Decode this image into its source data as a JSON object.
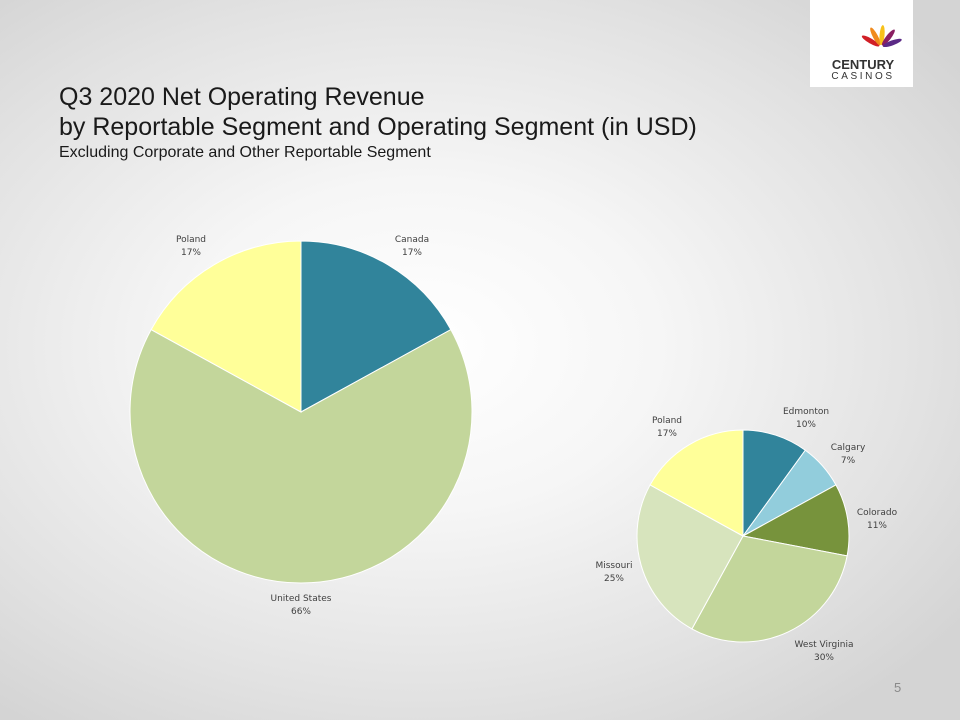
{
  "slide": {
    "title_line1": "Q3 2020 Net Operating Revenue",
    "title_line2": "by Reportable Segment and Operating Segment (in USD)",
    "subtitle": "Excluding Corporate and Other Reportable Segment",
    "page_number": "5"
  },
  "logo": {
    "line1": "CENTURY",
    "line2": "CASINOS",
    "colors": [
      "#d11f26",
      "#f08a1d",
      "#f7c11a",
      "#8a1f62",
      "#5b2a86"
    ]
  },
  "chart_data": [
    {
      "type": "pie",
      "title": "",
      "slices": [
        {
          "label": "Canada",
          "value": 17,
          "display": "17%",
          "color": "#31849b"
        },
        {
          "label": "United States",
          "value": 66,
          "display": "66%",
          "color": "#c3d69b"
        },
        {
          "label": "Poland",
          "value": 17,
          "display": "17%",
          "color": "#ffff99"
        }
      ]
    },
    {
      "type": "pie",
      "title": "",
      "slices": [
        {
          "label": "Edmonton",
          "value": 10,
          "display": "10%",
          "color": "#31849b"
        },
        {
          "label": "Calgary",
          "value": 7,
          "display": "7%",
          "color": "#92cddc"
        },
        {
          "label": "Colorado",
          "value": 11,
          "display": "11%",
          "color": "#77933c"
        },
        {
          "label": "West Virginia",
          "value": 30,
          "display": "30%",
          "color": "#c3d69b"
        },
        {
          "label": "Missouri",
          "value": 25,
          "display": "25%",
          "color": "#d7e4bd"
        },
        {
          "label": "Poland",
          "value": 17,
          "display": "17%",
          "color": "#ffff99"
        }
      ]
    }
  ]
}
